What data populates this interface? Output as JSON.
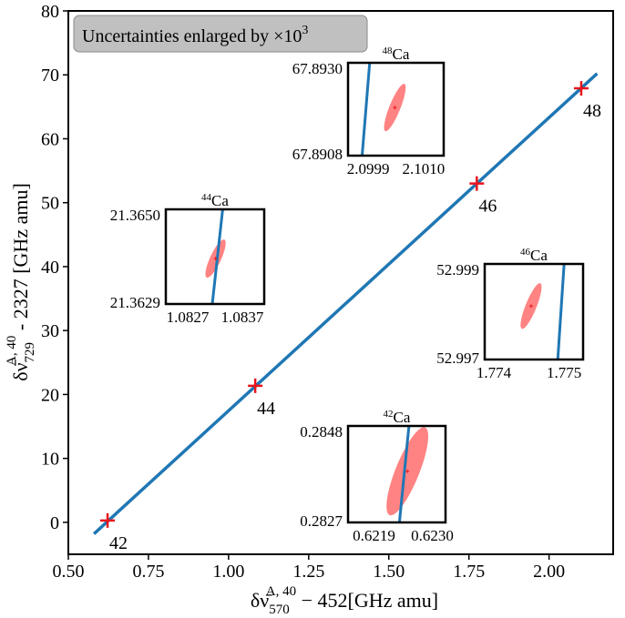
{
  "chart_data": {
    "type": "scatter",
    "main": {
      "xlabel_prefix": "δν̄",
      "xlabel_sub": "570",
      "xlabel_sup": "A, 40",
      "xlabel_suffix": " − 452[GHz amu]",
      "ylabel_prefix": "δν̄",
      "ylabel_sub": "729",
      "ylabel_sup": "A, 40",
      "ylabel_suffix": " - 2327 [GHz amu]",
      "xlim": [
        0.5,
        2.2
      ],
      "ylim": [
        -5,
        80
      ],
      "x_ticks": [
        "0.50",
        "0.75",
        "1.00",
        "1.25",
        "1.50",
        "1.75",
        "2.00"
      ],
      "x_tick_values": [
        0.5,
        0.75,
        1.0,
        1.25,
        1.5,
        1.75,
        2.0
      ],
      "y_ticks": [
        "0",
        "10",
        "20",
        "30",
        "40",
        "50",
        "60",
        "70",
        "80"
      ],
      "y_tick_values": [
        0,
        10,
        20,
        30,
        40,
        50,
        60,
        70,
        80
      ],
      "fit_line": {
        "x": [
          0.58,
          2.15
        ],
        "y": [
          -1.8,
          70.2
        ]
      },
      "points": [
        {
          "label": "42",
          "x": 0.6224,
          "y": 0.284
        },
        {
          "label": "44",
          "x": 1.0832,
          "y": 21.364
        },
        {
          "label": "46",
          "x": 1.7745,
          "y": 52.998
        },
        {
          "label": "48",
          "x": 2.1004,
          "y": 67.892
        }
      ],
      "legend_text": "Uncertainties enlarged by ×10",
      "legend_exp": "3"
    },
    "insets": [
      {
        "title_mass": "48",
        "title_elem": "Ca",
        "xlim": [
          2.0995,
          2.1014
        ],
        "ylim": [
          67.8906,
          67.8934
        ],
        "x_ticks": [
          "2.0999",
          "2.1010"
        ],
        "x_tick_values": [
          2.0999,
          2.101
        ],
        "y_ticks": [
          "67.8930",
          "67.8908"
        ],
        "y_tick_values": [
          67.893,
          67.8908
        ],
        "point": {
          "x": 2.10043,
          "y": 67.89205
        },
        "line": {
          "x": [
            2.09993,
            2.09978
          ],
          "y": [
            67.8934,
            67.8906
          ]
        }
      },
      {
        "title_mass": "44",
        "title_elem": "Ca",
        "xlim": [
          1.0823,
          1.0841
        ],
        "ylim": [
          21.3627,
          21.3652
        ],
        "x_ticks": [
          "1.0827",
          "1.0837"
        ],
        "x_tick_values": [
          1.0827,
          1.0837
        ],
        "y_ticks": [
          "21.3650",
          "21.3629"
        ],
        "y_tick_values": [
          21.365,
          21.3629
        ],
        "point": {
          "x": 1.08321,
          "y": 21.3639
        },
        "line": {
          "x": [
            1.08334,
            1.08315
          ],
          "y": [
            21.3652,
            21.3627
          ]
        }
      },
      {
        "title_mass": "46",
        "title_elem": "Ca",
        "xlim": [
          1.77387,
          1.77527
        ],
        "ylim": [
          52.99615,
          52.99935
        ],
        "x_ticks": [
          "1.774",
          "1.775"
        ],
        "x_tick_values": [
          1.774,
          1.775
        ],
        "y_ticks": [
          "52.999",
          "52.997"
        ],
        "y_tick_values": [
          52.999,
          52.997
        ],
        "point": {
          "x": 1.77453,
          "y": 52.99794
        },
        "line": {
          "x": [
            1.775,
            1.77491
          ],
          "y": [
            52.99935,
            52.99615
          ]
        }
      },
      {
        "title_mass": "42",
        "title_elem": "Ca",
        "xlim": [
          0.62141,
          0.62325
        ],
        "ylim": [
          0.28249,
          0.28496
        ],
        "x_ticks": [
          "0.6219",
          "0.6230"
        ],
        "x_tick_values": [
          0.6219,
          0.623
        ],
        "y_ticks": [
          "0.2848",
          "0.2827"
        ],
        "y_tick_values": [
          0.2848,
          0.2827
        ],
        "point": {
          "x": 0.62253,
          "y": 0.2838
        },
        "line": {
          "x": [
            0.62256,
            0.62238
          ],
          "y": [
            0.28496,
            0.28249
          ]
        }
      }
    ],
    "colors": {
      "line": "#1f77b4",
      "marker": "#e8141c",
      "ellipse": "#ff5a5a",
      "legend_bg": "#c0c0c0"
    }
  }
}
